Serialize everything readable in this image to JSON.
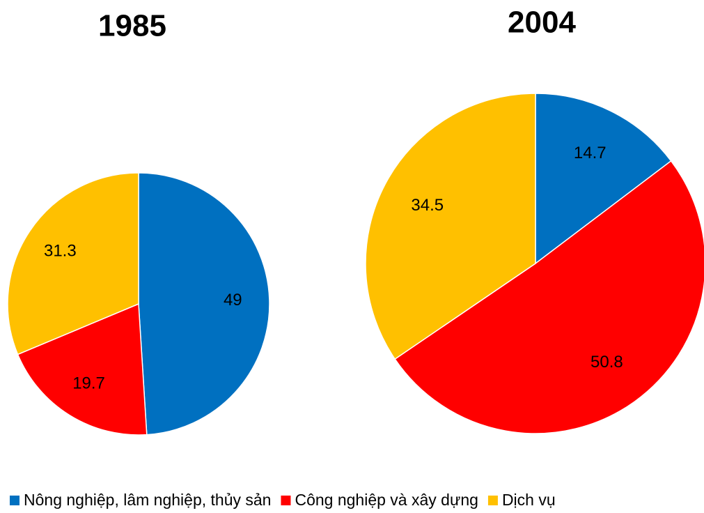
{
  "chart_data": [
    {
      "type": "pie",
      "title": "1985",
      "categories": [
        "Nông nghiệp, lâm nghiệp, thủy sản",
        "Công nghiệp và xây dựng",
        "Dịch vụ"
      ],
      "values": [
        49,
        19.7,
        31.3
      ],
      "colors": [
        "#0070c0",
        "#ff0000",
        "#ffc000"
      ]
    },
    {
      "type": "pie",
      "title": "2004",
      "categories": [
        "Nông nghiệp, lâm nghiệp, thủy sản",
        "Công nghiệp và xây dựng",
        "Dịch vụ"
      ],
      "values": [
        14.7,
        50.8,
        34.5
      ],
      "colors": [
        "#0070c0",
        "#ff0000",
        "#ffc000"
      ]
    }
  ]
}
